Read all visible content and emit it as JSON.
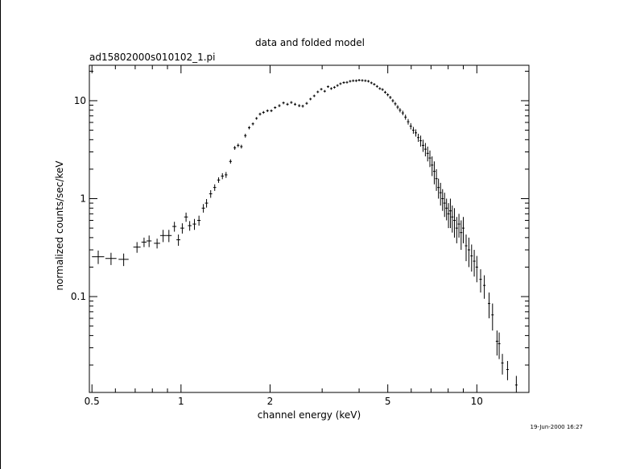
{
  "chart_data": {
    "type": "scatter",
    "title": "data and folded model",
    "subtitle": "ad15802000s010102_1.pi",
    "xlabel": "channel energy (keV)",
    "ylabel": "normalized counts/sec/keV",
    "x_scale": "log",
    "y_scale": "log",
    "xlim": [
      0.49,
      15.0
    ],
    "ylim": [
      0.0105,
      23.0
    ],
    "x_ticks": [
      {
        "value": 0.5,
        "label": "0.5"
      },
      {
        "value": 1,
        "label": "1"
      },
      {
        "value": 2,
        "label": "2"
      },
      {
        "value": 5,
        "label": "5"
      },
      {
        "value": 10,
        "label": "10"
      }
    ],
    "y_ticks": [
      {
        "value": 0.1,
        "label": "0.1"
      },
      {
        "value": 1,
        "label": "1"
      },
      {
        "value": 10,
        "label": "10"
      }
    ],
    "grid": false,
    "legend": "none",
    "timestamp": "19-Jun-2000 16:27",
    "series": [
      {
        "name": "",
        "color": "#000000",
        "points": [
          [
            0.525,
            0.255,
            0.025,
            0.04
          ],
          [
            0.58,
            0.245,
            0.025,
            0.035
          ],
          [
            0.64,
            0.24,
            0.025,
            0.035
          ],
          [
            0.71,
            0.32,
            0.02,
            0.04
          ],
          [
            0.75,
            0.36,
            0.015,
            0.04
          ],
          [
            0.78,
            0.37,
            0.015,
            0.05
          ],
          [
            0.83,
            0.35,
            0.02,
            0.04
          ],
          [
            0.87,
            0.42,
            0.02,
            0.06
          ],
          [
            0.91,
            0.42,
            0.02,
            0.06
          ],
          [
            0.95,
            0.52,
            0.015,
            0.06
          ],
          [
            0.98,
            0.38,
            0.015,
            0.05
          ],
          [
            1.01,
            0.5,
            0.015,
            0.06
          ],
          [
            1.04,
            0.65,
            0.015,
            0.07
          ],
          [
            1.07,
            0.53,
            0.015,
            0.06
          ],
          [
            1.11,
            0.55,
            0.015,
            0.07
          ],
          [
            1.15,
            0.6,
            0.015,
            0.07
          ],
          [
            1.19,
            0.8,
            0.015,
            0.08
          ],
          [
            1.22,
            0.9,
            0.015,
            0.09
          ],
          [
            1.26,
            1.12,
            0.015,
            0.1
          ],
          [
            1.3,
            1.3,
            0.015,
            0.1
          ],
          [
            1.34,
            1.55,
            0.015,
            0.1
          ],
          [
            1.38,
            1.7,
            0.015,
            0.12
          ],
          [
            1.42,
            1.75,
            0.015,
            0.12
          ],
          [
            1.47,
            2.4,
            0.015,
            0.12
          ],
          [
            1.52,
            3.3,
            0.015,
            0.15
          ],
          [
            1.56,
            3.5,
            0.015,
            0.15
          ],
          [
            1.6,
            3.4,
            0.015,
            0.15
          ],
          [
            1.65,
            4.4,
            0.015,
            0.2
          ],
          [
            1.7,
            5.3,
            0.015,
            0.2
          ],
          [
            1.75,
            5.8,
            0.015,
            0.2
          ],
          [
            1.8,
            6.6,
            0.015,
            0.2
          ],
          [
            1.85,
            7.3,
            0.015,
            0.25
          ],
          [
            1.9,
            7.6,
            0.015,
            0.25
          ],
          [
            1.96,
            7.9,
            0.015,
            0.25
          ],
          [
            2.02,
            7.9,
            0.015,
            0.25
          ],
          [
            2.08,
            8.5,
            0.015,
            0.25
          ],
          [
            2.15,
            8.9,
            0.015,
            0.3
          ],
          [
            2.22,
            9.5,
            0.015,
            0.3
          ],
          [
            2.29,
            9.2,
            0.015,
            0.3
          ],
          [
            2.36,
            9.6,
            0.015,
            0.3
          ],
          [
            2.43,
            9.2,
            0.015,
            0.3
          ],
          [
            2.51,
            8.9,
            0.015,
            0.3
          ],
          [
            2.58,
            8.8,
            0.015,
            0.3
          ],
          [
            2.66,
            9.4,
            0.015,
            0.3
          ],
          [
            2.74,
            10.4,
            0.015,
            0.3
          ],
          [
            2.82,
            11.2,
            0.015,
            0.3
          ],
          [
            2.9,
            12.3,
            0.015,
            0.35
          ],
          [
            2.98,
            13.1,
            0.015,
            0.35
          ],
          [
            3.06,
            12.5,
            0.015,
            0.35
          ],
          [
            3.14,
            13.9,
            0.015,
            0.35
          ],
          [
            3.22,
            13.3,
            0.015,
            0.35
          ],
          [
            3.3,
            13.7,
            0.015,
            0.35
          ],
          [
            3.38,
            14.3,
            0.015,
            0.35
          ],
          [
            3.46,
            14.9,
            0.015,
            0.35
          ],
          [
            3.55,
            15.3,
            0.015,
            0.35
          ],
          [
            3.64,
            15.4,
            0.015,
            0.35
          ],
          [
            3.73,
            15.8,
            0.015,
            0.35
          ],
          [
            3.82,
            16.0,
            0.015,
            0.35
          ],
          [
            3.91,
            16.0,
            0.015,
            0.35
          ],
          [
            4.0,
            16.2,
            0.015,
            0.35
          ],
          [
            4.1,
            16.1,
            0.015,
            0.35
          ],
          [
            4.2,
            16.0,
            0.015,
            0.35
          ],
          [
            4.3,
            15.8,
            0.015,
            0.35
          ],
          [
            4.4,
            15.2,
            0.015,
            0.35
          ],
          [
            4.5,
            14.7,
            0.015,
            0.35
          ],
          [
            4.6,
            14.0,
            0.015,
            0.35
          ],
          [
            4.7,
            13.3,
            0.015,
            0.35
          ],
          [
            4.8,
            13.0,
            0.015,
            0.4
          ],
          [
            4.9,
            12.2,
            0.015,
            0.4
          ],
          [
            5.0,
            11.5,
            0.015,
            0.4
          ],
          [
            5.1,
            10.8,
            0.015,
            0.4
          ],
          [
            5.2,
            10.0,
            0.015,
            0.4
          ],
          [
            5.3,
            9.3,
            0.015,
            0.4
          ],
          [
            5.4,
            8.6,
            0.015,
            0.4
          ],
          [
            5.5,
            8.0,
            0.015,
            0.4
          ],
          [
            5.62,
            7.5,
            0.015,
            0.4
          ],
          [
            5.74,
            6.8,
            0.015,
            0.4
          ],
          [
            5.86,
            6.1,
            0.015,
            0.4
          ],
          [
            5.98,
            5.5,
            0.015,
            0.4
          ],
          [
            6.1,
            5.0,
            0.015,
            0.4
          ],
          [
            6.22,
            4.7,
            0.015,
            0.4
          ],
          [
            6.34,
            4.2,
            0.015,
            0.4
          ],
          [
            6.46,
            3.9,
            0.015,
            0.5
          ],
          [
            6.58,
            3.5,
            0.015,
            0.5
          ],
          [
            6.7,
            3.2,
            0.015,
            0.5
          ],
          [
            6.82,
            2.9,
            0.015,
            0.5
          ],
          [
            6.94,
            2.6,
            0.015,
            0.5
          ],
          [
            7.06,
            2.2,
            0.015,
            0.5
          ],
          [
            7.18,
            1.9,
            0.015,
            0.5
          ],
          [
            7.3,
            1.6,
            0.015,
            0.4
          ],
          [
            7.42,
            1.3,
            0.015,
            0.3
          ],
          [
            7.54,
            1.15,
            0.015,
            0.3
          ],
          [
            7.66,
            1.0,
            0.015,
            0.25
          ],
          [
            7.78,
            0.9,
            0.015,
            0.25
          ],
          [
            7.9,
            0.8,
            0.015,
            0.2
          ],
          [
            8.02,
            0.7,
            0.015,
            0.2
          ],
          [
            8.14,
            0.75,
            0.015,
            0.25
          ],
          [
            8.26,
            0.65,
            0.015,
            0.2
          ],
          [
            8.4,
            0.6,
            0.015,
            0.2
          ],
          [
            8.55,
            0.5,
            0.015,
            0.15
          ],
          [
            8.7,
            0.55,
            0.015,
            0.15
          ],
          [
            8.85,
            0.45,
            0.015,
            0.15
          ],
          [
            9.0,
            0.5,
            0.015,
            0.15
          ],
          [
            9.2,
            0.33,
            0.015,
            0.1
          ],
          [
            9.4,
            0.3,
            0.015,
            0.1
          ],
          [
            9.6,
            0.26,
            0.015,
            0.08
          ],
          [
            9.8,
            0.23,
            0.015,
            0.07
          ],
          [
            10.0,
            0.2,
            0.015,
            0.06
          ],
          [
            10.3,
            0.15,
            0.02,
            0.04
          ],
          [
            10.6,
            0.13,
            0.02,
            0.035
          ],
          [
            11.0,
            0.085,
            0.02,
            0.025
          ],
          [
            11.3,
            0.065,
            0.02,
            0.02
          ],
          [
            11.7,
            0.035,
            0.025,
            0.01
          ],
          [
            11.9,
            0.033,
            0.025,
            0.01
          ],
          [
            12.2,
            0.021,
            0.025,
            0.005
          ],
          [
            12.7,
            0.018,
            0.025,
            0.004
          ],
          [
            13.6,
            0.0125,
            0.04,
            0.003
          ]
        ]
      }
    ]
  }
}
